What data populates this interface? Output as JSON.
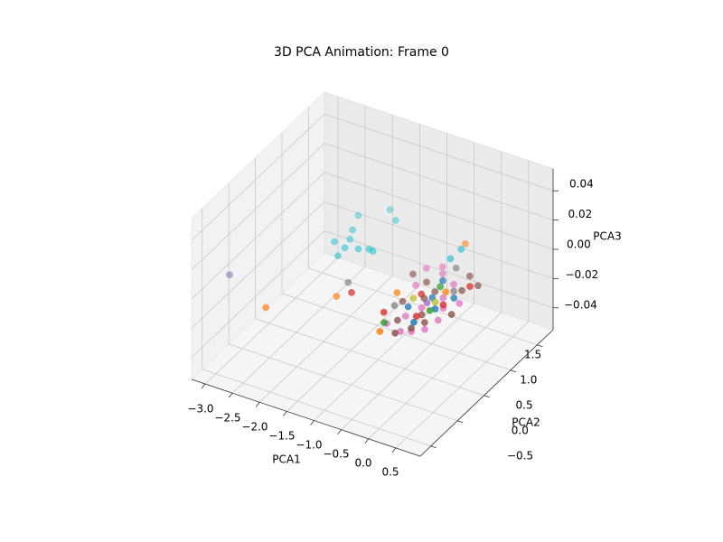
{
  "chart_data": {
    "type": "scatter3d",
    "title": "3D PCA Animation: Frame 0",
    "xlabel": "PCA1",
    "ylabel": "PCA2",
    "zlabel": "PCA3",
    "xlim": [
      -3.25,
      0.95
    ],
    "ylim": [
      -0.7,
      1.8
    ],
    "zlim": [
      -0.055,
      0.055
    ],
    "xticks": [
      {
        "value": -3.0,
        "label": "−3.0"
      },
      {
        "value": -2.5,
        "label": "−2.5"
      },
      {
        "value": -2.0,
        "label": "−2.0"
      },
      {
        "value": -1.5,
        "label": "−1.5"
      },
      {
        "value": -1.0,
        "label": "−1.0"
      },
      {
        "value": -0.5,
        "label": "−0.5"
      },
      {
        "value": 0.0,
        "label": "0.0"
      },
      0.5
    ],
    "yticks": [
      {
        "value": -0.5,
        "label": "−0.5"
      },
      {
        "value": 0.0,
        "label": "0.0"
      },
      0.5,
      {
        "value": 1.0,
        "label": "1.0"
      },
      1.5
    ],
    "zticks": [
      {
        "value": -0.04,
        "label": "−0.04"
      },
      {
        "value": -0.02,
        "label": "−0.02"
      },
      {
        "value": 0.0,
        "label": "0.00"
      },
      0.02,
      0.04
    ],
    "grid": true,
    "depthshade": true,
    "series": [
      {
        "color": "#e377c2",
        "x": [
          -0.2,
          0.1,
          0.3,
          0.45,
          -0.1,
          0.2,
          0.0,
          -0.4,
          0.35,
          -0.25,
          0.15,
          -0.5,
          0.4,
          0.05,
          -0.3
        ],
        "y": [
          0.9,
          0.8,
          0.4,
          0.55,
          0.1,
          -0.1,
          0.3,
          0.6,
          0.0,
          -0.1,
          0.55,
          0.9,
          0.2,
          -0.15,
          1.0
        ],
        "z": [
          0,
          0,
          0,
          0,
          0,
          0,
          0,
          0,
          0,
          0,
          0,
          0,
          0,
          0,
          0
        ]
      },
      {
        "color": "#8c564b",
        "x": [
          -0.3,
          0.2,
          0.5,
          0.1,
          -0.05,
          0.3,
          -0.15,
          0.25,
          -0.6,
          0.0,
          0.45,
          -0.35,
          0.15,
          -0.1
        ],
        "y": [
          0.7,
          1.0,
          0.35,
          0.2,
          0.6,
          0.75,
          0.0,
          0.1,
          0.75,
          -0.2,
          0.9,
          0.3,
          -0.05,
          0.45
        ],
        "z": [
          0,
          0,
          0,
          0,
          0,
          0,
          0,
          0,
          0,
          0,
          0,
          0,
          0,
          0
        ]
      },
      {
        "color": "#1f77b4",
        "x": [
          0.0,
          0.2,
          -0.2,
          0.1,
          0.3,
          -0.1
        ],
        "y": [
          0.5,
          0.35,
          0.25,
          0.05,
          0.6,
          0.8
        ],
        "z": [
          0,
          0,
          0,
          0,
          0,
          0
        ]
      },
      {
        "color": "#d62728",
        "x": [
          -1.17,
          0.05,
          -0.2,
          0.25,
          -0.45,
          0.35
        ],
        "y": [
          0.18,
          0.15,
          0.5,
          0.45,
          0.05,
          0.85
        ],
        "z": [
          0,
          0,
          0,
          0,
          0,
          0
        ]
      },
      {
        "color": "#ff7f0e",
        "x": [
          -2.12,
          -1.32,
          -0.23,
          -0.32,
          0.1,
          -0.55
        ],
        "y": [
          -0.46,
          0.05,
          -0.25,
          1.45,
          0.65,
          0.4
        ],
        "z": [
          0,
          0,
          0,
          0,
          0,
          0
        ]
      },
      {
        "color": "#2ca02c",
        "x": [
          -0.3,
          0.15,
          -0.05
        ],
        "y": [
          -0.1,
          0.3,
          0.7
        ],
        "z": [
          0,
          0,
          0
        ]
      },
      {
        "color": "#7f7f7f",
        "x": [
          -1.36,
          -0.1,
          0.2,
          -0.4
        ],
        "y": [
          0.31,
          1.05,
          0.7,
          0.2
        ],
        "z": [
          0,
          0,
          0,
          0
        ]
      },
      {
        "color": "#9467bd",
        "x": [
          -3.08,
          0.0
        ],
        "y": [
          -0.16,
          0.4
        ],
        "z": [
          0,
          0
        ]
      },
      {
        "color": "#17becf",
        "x": [
          -2.18,
          -1.88,
          -2.13,
          -1.47,
          -1.83,
          -0.3,
          -0.31,
          -1.95,
          -1.7,
          -1.55,
          -2.05,
          -1.6,
          -1.9
        ],
        "y": [
          1.34,
          0.65,
          0.84,
          0.89,
          1.58,
          1.35,
          1.16,
          0.95,
          0.85,
          0.9,
          1.1,
          1.45,
          0.8
        ],
        "z": [
          0,
          0,
          0,
          0,
          0,
          0,
          0,
          0,
          0,
          0,
          0,
          0,
          0
        ]
      },
      {
        "color": "#bcbd22",
        "x": [
          0.1,
          -0.25
        ],
        "y": [
          0.45,
          0.4
        ],
        "z": [
          0,
          0
        ]
      }
    ]
  }
}
